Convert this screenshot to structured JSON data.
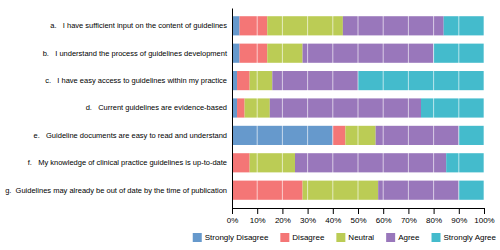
{
  "chart_data": {
    "type": "bar",
    "orientation": "horizontal",
    "stacked": true,
    "categories": [
      "a.   I have sufficient input on the content of guidelines",
      "b.   I understand the process of guidelines development",
      "c.   I have easy access to guidelines within my practice",
      "d.   Current guidelines are evidence-based",
      "e.   Guideline documents are easy to read and understand",
      "f.   My knowledge of clinical practice guidelines is up-to-date",
      "g.  Guidelines may already be out of date by the time of publication"
    ],
    "series": [
      {
        "name": "Strongly Disagree",
        "color": "#6699CC",
        "values": [
          3,
          3,
          2,
          2,
          40,
          0,
          0
        ]
      },
      {
        "name": "Disagree",
        "color": "#F47676",
        "values": [
          11,
          11,
          5,
          3,
          5,
          7,
          28
        ]
      },
      {
        "name": "Neutral",
        "color": "#BBCC55",
        "values": [
          30,
          14,
          9,
          10,
          12,
          18,
          30
        ]
      },
      {
        "name": "Agree",
        "color": "#9977BB",
        "values": [
          40,
          52,
          34,
          60,
          33,
          60,
          32
        ]
      },
      {
        "name": "Strongly Agree",
        "color": "#44BBCC",
        "values": [
          16,
          20,
          50,
          25,
          10,
          15,
          10
        ]
      }
    ],
    "xlim": [
      0,
      100
    ],
    "xticks": [
      {
        "value": 0,
        "label": "0%"
      },
      {
        "value": 10,
        "label": "10%"
      },
      {
        "value": 20,
        "label": "20%"
      },
      {
        "value": 30,
        "label": "30%"
      },
      {
        "value": 40,
        "label": "40%"
      },
      {
        "value": 50,
        "label": "50%"
      },
      {
        "value": 60,
        "label": "60%"
      },
      {
        "value": 70,
        "label": "70%"
      },
      {
        "value": 80,
        "label": "80%"
      },
      {
        "value": 90,
        "label": "90%"
      },
      {
        "value": 100,
        "label": "100%"
      }
    ],
    "grid": true,
    "legend": "bottom"
  }
}
